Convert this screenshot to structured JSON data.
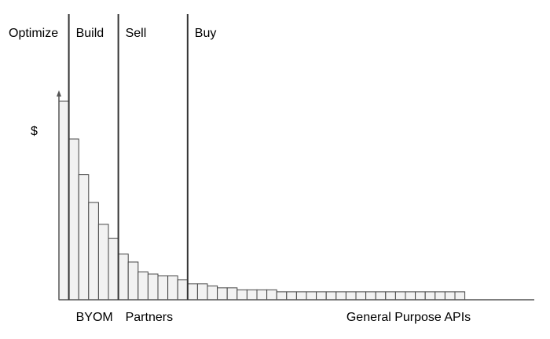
{
  "chart_data": {
    "type": "bar",
    "title": "",
    "xlabel": "",
    "ylabel": "$",
    "grid": false,
    "legend": "none",
    "ylim": [
      0,
      100
    ],
    "bar_fill": "#f2f2f2",
    "bar_stroke": "#444444",
    "axis_color": "#555555",
    "divider_color": "#333333",
    "values": [
      100,
      81,
      63,
      49,
      38,
      31,
      23,
      19,
      14,
      13,
      12,
      12,
      10,
      8,
      8,
      7,
      6,
      6,
      5,
      5,
      5,
      5,
      4,
      4,
      4,
      4,
      4,
      4,
      4,
      4,
      4,
      4,
      4,
      4,
      4,
      4,
      4,
      4,
      4,
      4,
      4
    ],
    "segments": [
      {
        "top_label": "Optimize",
        "bottom_label": "",
        "start": 0,
        "end": 1
      },
      {
        "top_label": "Build",
        "bottom_label": "BYOM",
        "start": 1,
        "end": 6
      },
      {
        "top_label": "Sell",
        "bottom_label": "Partners",
        "start": 6,
        "end": 13
      },
      {
        "top_label": "Buy",
        "bottom_label": "General Purpose APIs",
        "start": 13,
        "end": 41
      }
    ]
  }
}
